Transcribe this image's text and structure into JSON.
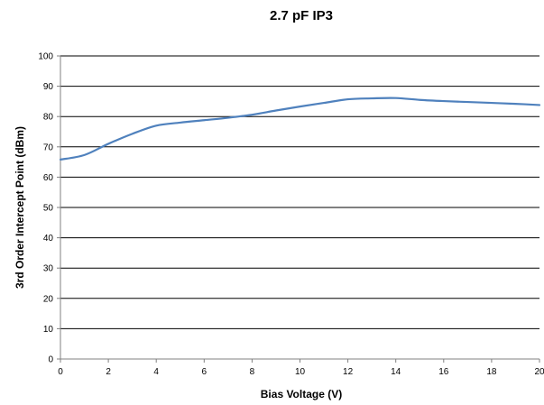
{
  "chart_data": {
    "type": "line",
    "title": "2.7 pF IP3",
    "xlabel": "Bias Voltage (V)",
    "ylabel": "3rd Order Intercept Point (dBm)",
    "xlim": [
      0,
      20
    ],
    "ylim": [
      0,
      100
    ],
    "xticks": [
      "0",
      "2",
      "4",
      "6",
      "8",
      "10",
      "12",
      "14",
      "16",
      "18",
      "20"
    ],
    "yticks": [
      "0",
      "10",
      "20",
      "30",
      "40",
      "50",
      "60",
      "70",
      "80",
      "90",
      "100"
    ],
    "grid": "horizontal",
    "legend": "none",
    "series": [
      {
        "color": "#4f81bd",
        "x": [
          0,
          1,
          2,
          3,
          4,
          5,
          6,
          7,
          8,
          9,
          10,
          11,
          12,
          13,
          14,
          15,
          16,
          17,
          18,
          19,
          20
        ],
        "y": [
          65.8,
          67.3,
          71,
          74.3,
          77,
          78,
          78.8,
          79.6,
          80.6,
          82,
          83.3,
          84.5,
          85.7,
          86,
          86.1,
          85.5,
          85.1,
          84.8,
          84.5,
          84.2,
          83.8
        ]
      }
    ]
  }
}
